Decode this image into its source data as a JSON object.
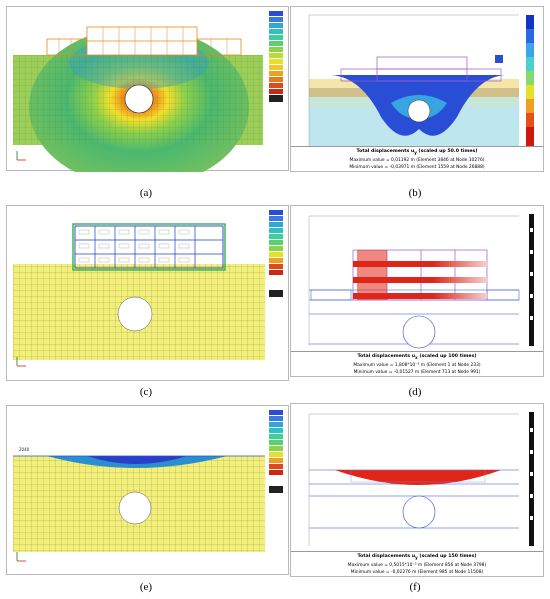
{
  "panels": {
    "a": {
      "caption": "(a)"
    },
    "b": {
      "caption": "(b)",
      "title": "Total displacements u",
      "title_sub": "y",
      "title_scale": "(scaled up 50.0 times)",
      "max_line": "Maximum value = 0,01192 m (Element 3846 at Node 10276)",
      "min_line": "Minimum value = -0,03971 m (Element 1559 at Node 26888)"
    },
    "c": {
      "caption": "(c)"
    },
    "d": {
      "caption": "(d)",
      "title": "Total displacements u",
      "title_sub": "x",
      "title_scale": "(scaled up 100 times)",
      "max_line": "Maximum value = 1,808*10⁻³ m (Element 1 at Node 233)",
      "min_line": "Minimum value = -0,01527 m (Element 713 at Node 991)"
    },
    "e": {
      "caption": "(e)",
      "label": "2040"
    },
    "f": {
      "caption": "(f)",
      "title": "Total displacements u",
      "title_sub": "y",
      "title_scale": "(scaled up 150 times)",
      "max_line": "Maximum value = 0,5015*10⁻³ m (Element 856 at Node 3798)",
      "min_line": "Minimum value = -0,02276 m (Element 985 at Node 11508)"
    }
  },
  "colors": {
    "soil_yellow": "#f2ef7a",
    "soil_green": "#9ccf5a",
    "mesh_line": "#6d6a2a",
    "frame_orange": "#e68a1e",
    "blue_contour": "#2a4dd6",
    "red_contour": "#e0261a",
    "structure_purple": "#9b59c8"
  }
}
